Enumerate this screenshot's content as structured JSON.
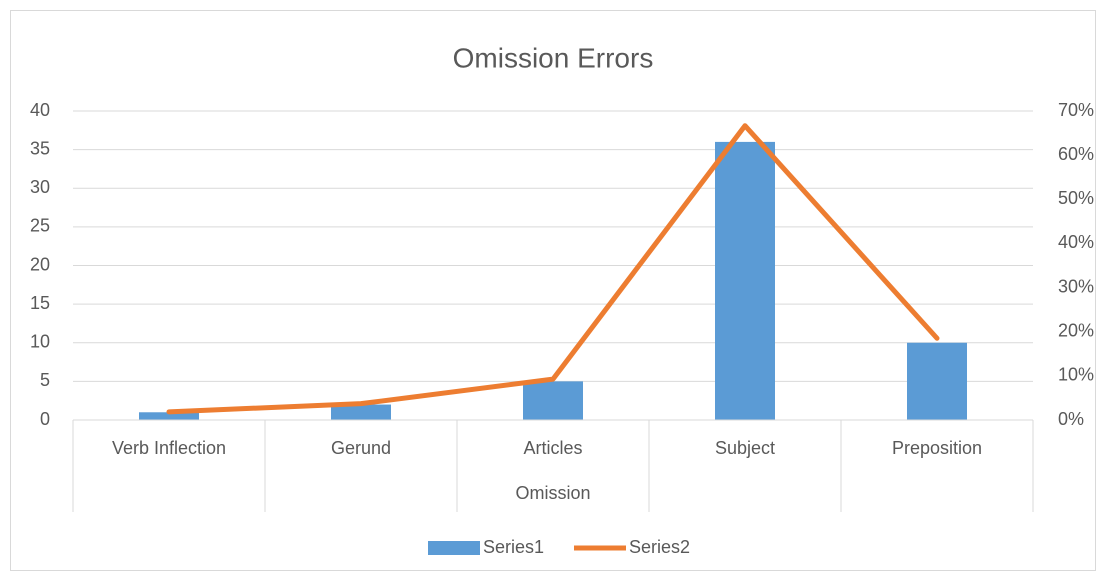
{
  "chart_data": {
    "type": "combo",
    "title": "Omission Errors",
    "x_label": "Omission",
    "categories": [
      "Verb Inflection",
      "Gerund",
      "Articles",
      "Subject",
      "Preposition"
    ],
    "series": [
      {
        "name": "Series1",
        "type": "bar",
        "color": "#5b9bd5",
        "values": [
          1,
          2,
          5,
          36,
          10
        ]
      },
      {
        "name": "Series2",
        "type": "line",
        "axis": "y2",
        "color": "#ed7d31",
        "values": [
          1.85,
          3.7,
          9.26,
          66.67,
          18.52
        ]
      }
    ],
    "ylim": [
      0,
      40
    ],
    "yticks": [
      0,
      5,
      10,
      15,
      20,
      25,
      30,
      35,
      40
    ],
    "y2lim": [
      0,
      70
    ],
    "y2ticks": [
      {
        "value": 0,
        "label": "0%"
      },
      {
        "value": 10,
        "label": "10%"
      },
      {
        "value": 20,
        "label": "20%"
      },
      {
        "value": 30,
        "label": "30%"
      },
      {
        "value": 40,
        "label": "40%"
      },
      {
        "value": 50,
        "label": "50%"
      },
      {
        "value": 60,
        "label": "60%"
      },
      {
        "value": 70,
        "label": "70%"
      }
    ],
    "grid": true,
    "legend": "bottom"
  }
}
